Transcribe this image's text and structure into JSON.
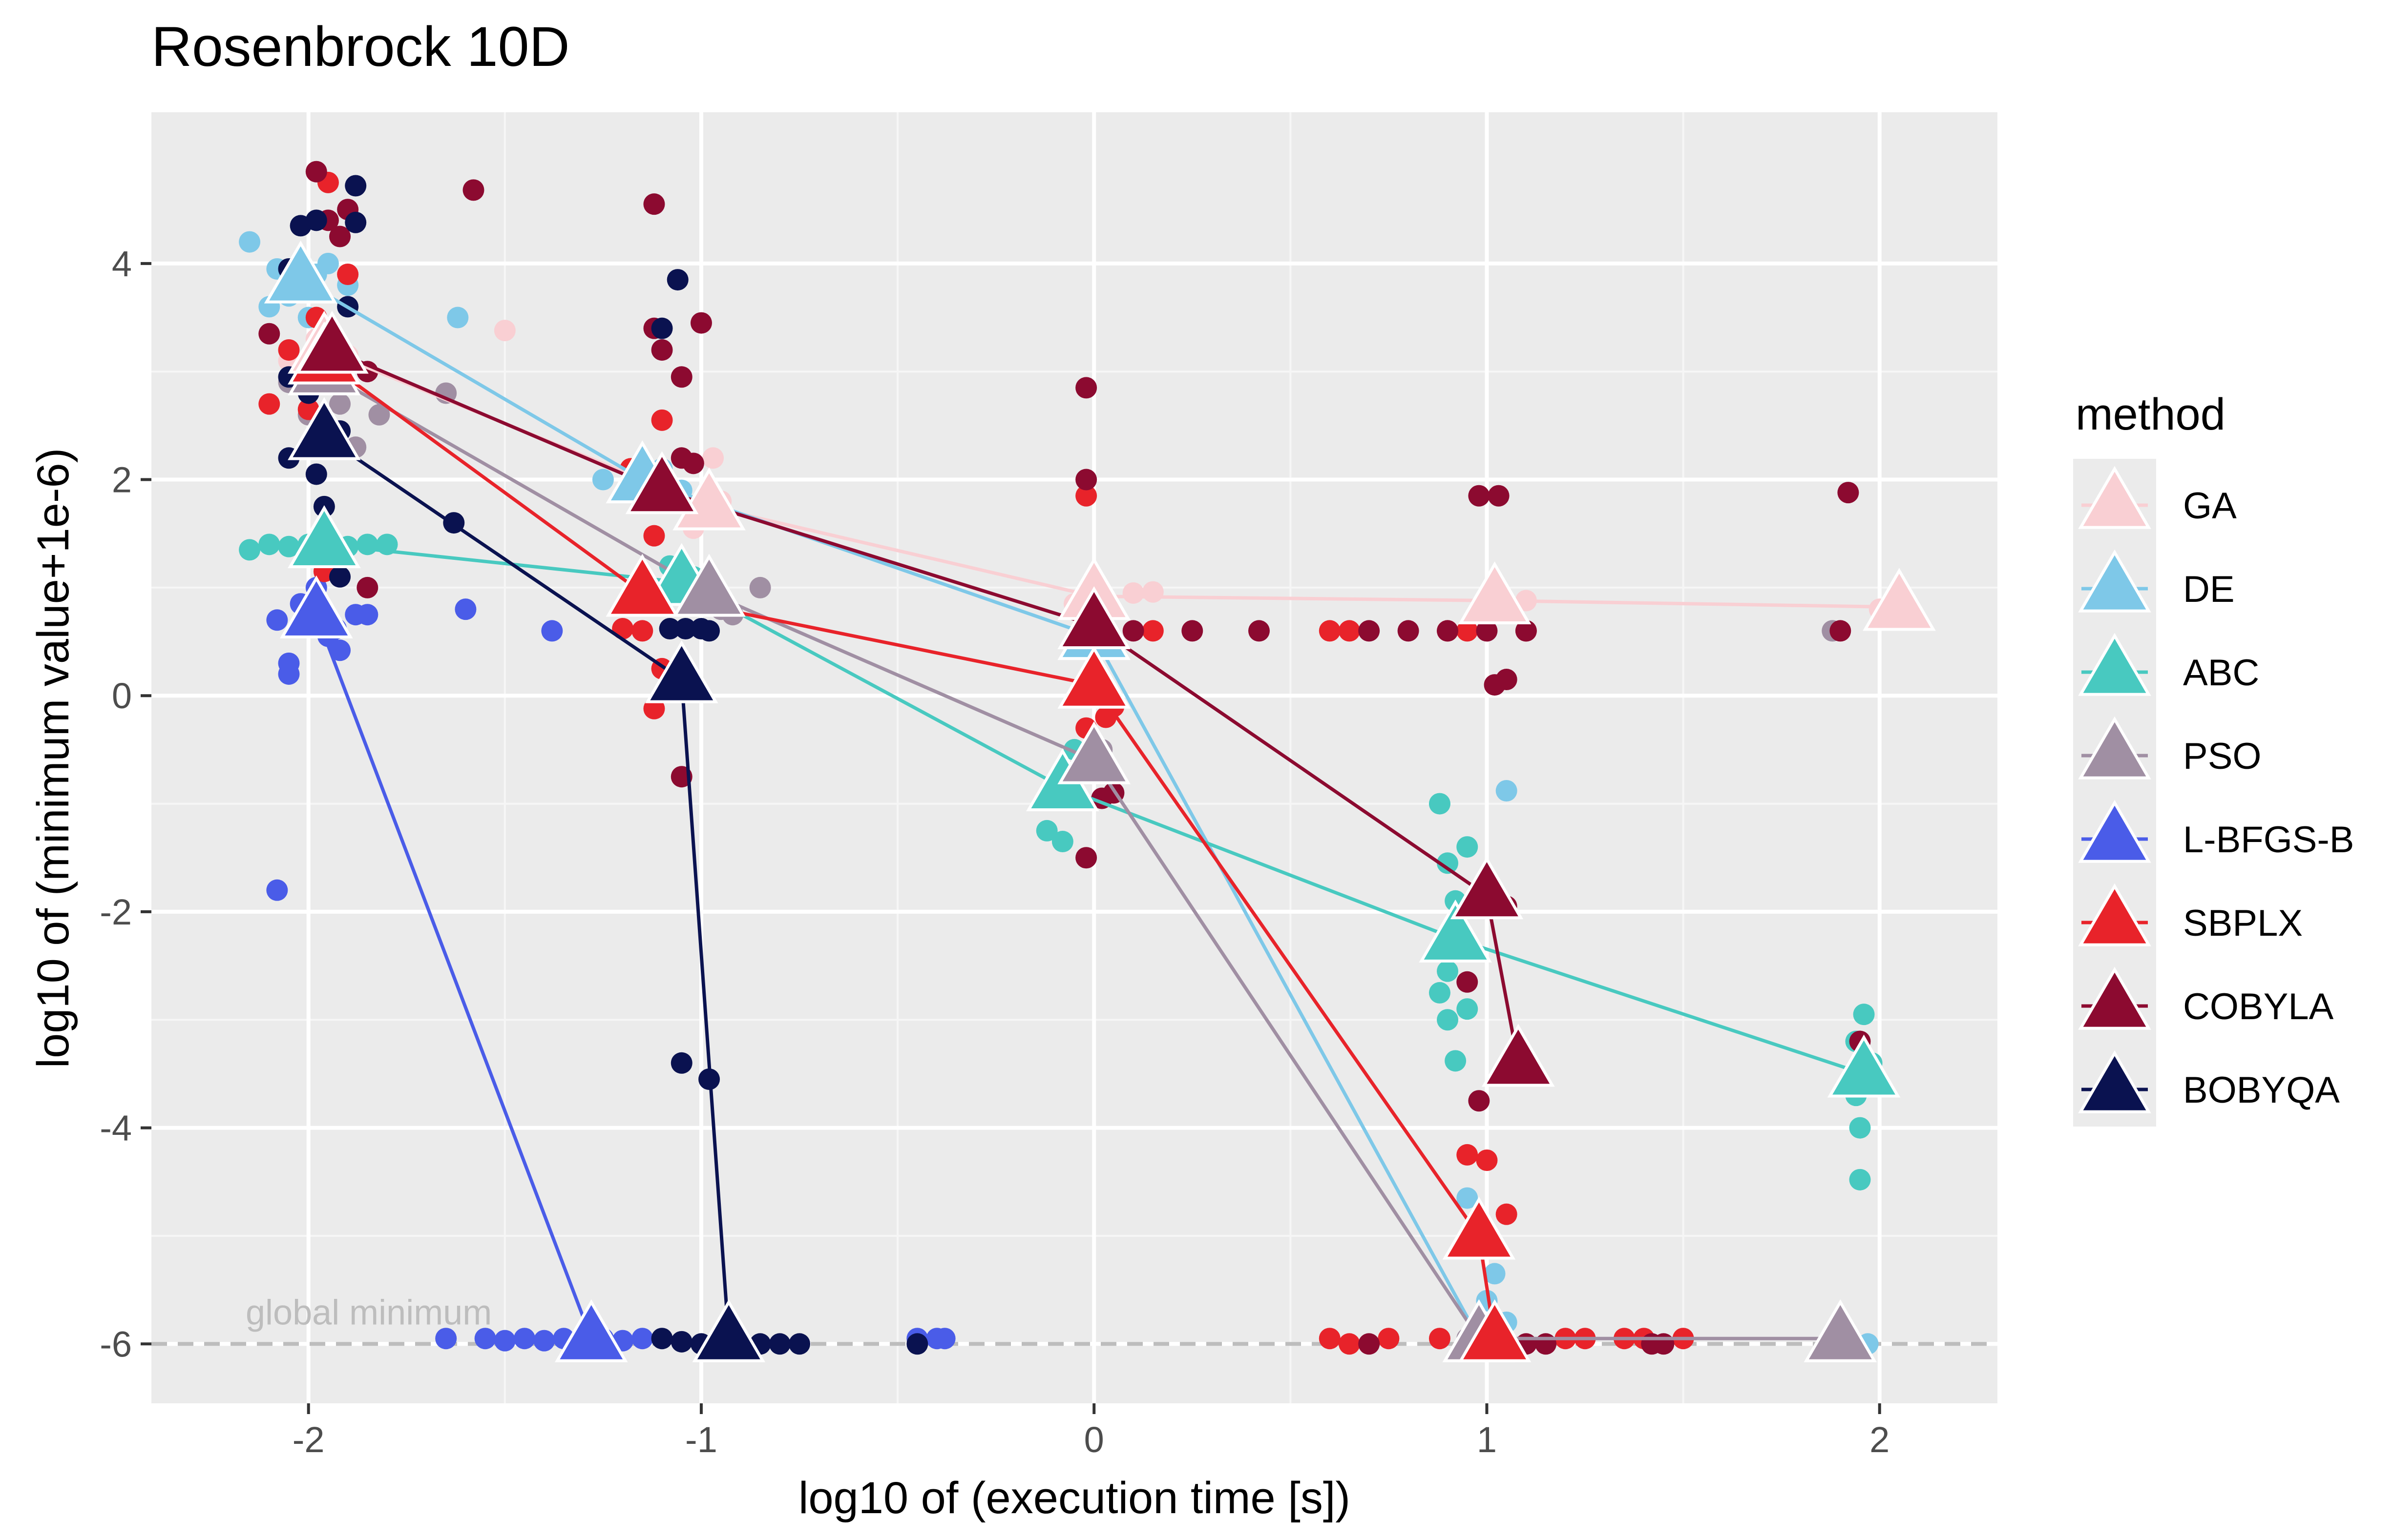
{
  "chart_data": {
    "type": "scatter",
    "title": "Rosenbrock 10D",
    "xlabel": "log10 of (execution time [s])",
    "ylabel": "log10 of (minimum value+1e-6)",
    "xlim": [
      -2.4,
      2.3
    ],
    "ylim": [
      -6.55,
      5.4
    ],
    "x_ticks": [
      -2,
      -1,
      0,
      1,
      2
    ],
    "x_tick_labels": [
      "-2",
      "-1",
      "0",
      "1",
      "2"
    ],
    "y_ticks": [
      -6,
      -4,
      -2,
      0,
      2,
      4
    ],
    "y_tick_labels": [
      "-6",
      "-4",
      "-2",
      "0",
      "2",
      "4"
    ],
    "grid": true,
    "legend_title": "method",
    "legend_position": "right",
    "reference_line": {
      "y": -6,
      "label": "global minimum",
      "color": "#bdbdbd",
      "style": "dashed"
    },
    "series": [
      {
        "name": "GA",
        "color": "#f9cfd3",
        "means": [
          [
            -1.96,
            3.2
          ],
          [
            -0.98,
            1.75
          ],
          [
            0.0,
            0.92
          ],
          [
            1.02,
            0.88
          ],
          [
            2.05,
            0.82
          ]
        ],
        "points": [
          [
            -2.05,
            3.1
          ],
          [
            -1.98,
            3.3
          ],
          [
            -1.9,
            3.15
          ],
          [
            -1.95,
            2.9
          ],
          [
            -1.5,
            3.38
          ],
          [
            -1.0,
            1.7
          ],
          [
            -0.97,
            2.2
          ],
          [
            -1.02,
            1.55
          ],
          [
            -0.95,
            1.8
          ],
          [
            0.02,
            0.95
          ],
          [
            0.1,
            0.95
          ],
          [
            0.15,
            0.96
          ],
          [
            -0.05,
            0.85
          ],
          [
            1.0,
            0.9
          ],
          [
            1.1,
            0.88
          ],
          [
            2.0,
            0.8
          ]
        ]
      },
      {
        "name": "DE",
        "color": "#7ec8e8",
        "means": [
          [
            -2.02,
            3.85
          ],
          [
            -1.15,
            2.0
          ],
          [
            0.0,
            0.55
          ],
          [
            0.98,
            -5.95
          ]
        ],
        "points": [
          [
            -2.15,
            4.2
          ],
          [
            -2.08,
            3.95
          ],
          [
            -2.05,
            3.7
          ],
          [
            -2.0,
            3.5
          ],
          [
            -1.95,
            4.0
          ],
          [
            -1.9,
            3.8
          ],
          [
            -2.1,
            3.6
          ],
          [
            -1.98,
            3.9
          ],
          [
            -1.62,
            3.5
          ],
          [
            -1.25,
            2.0
          ],
          [
            -1.15,
            1.8
          ],
          [
            -1.1,
            2.1
          ],
          [
            -1.05,
            1.9
          ],
          [
            -0.02,
            0.5
          ],
          [
            0.95,
            -4.65
          ],
          [
            1.02,
            -5.35
          ],
          [
            1.05,
            -0.88
          ],
          [
            1.0,
            -5.6
          ],
          [
            1.05,
            -5.8
          ],
          [
            1.97,
            -6.0
          ]
        ]
      },
      {
        "name": "ABC",
        "color": "#48c9c0",
        "means": [
          [
            -1.96,
            1.4
          ],
          [
            -1.05,
            1.05
          ],
          [
            -0.08,
            -0.85
          ],
          [
            0.92,
            -2.25
          ],
          [
            1.96,
            -3.5
          ]
        ],
        "points": [
          [
            -2.15,
            1.35
          ],
          [
            -2.1,
            1.4
          ],
          [
            -2.05,
            1.38
          ],
          [
            -2.0,
            1.4
          ],
          [
            -1.9,
            1.38
          ],
          [
            -1.85,
            1.4
          ],
          [
            -1.8,
            1.4
          ],
          [
            -1.08,
            1.2
          ],
          [
            -1.02,
            1.1
          ],
          [
            -1.0,
            0.95
          ],
          [
            -0.12,
            -1.25
          ],
          [
            -0.1,
            -0.95
          ],
          [
            -0.08,
            -1.35
          ],
          [
            -0.05,
            -0.5
          ],
          [
            0.88,
            -1.0
          ],
          [
            0.9,
            -1.55
          ],
          [
            0.92,
            -1.9
          ],
          [
            0.95,
            -1.4
          ],
          [
            0.88,
            -2.75
          ],
          [
            0.9,
            -3.0
          ],
          [
            0.92,
            -3.38
          ],
          [
            0.95,
            -2.9
          ],
          [
            0.9,
            -2.55
          ],
          [
            1.96,
            -2.95
          ],
          [
            1.94,
            -3.2
          ],
          [
            1.98,
            -3.4
          ],
          [
            1.94,
            -3.7
          ],
          [
            1.95,
            -4.0
          ],
          [
            1.95,
            -4.48
          ]
        ]
      },
      {
        "name": "PSO",
        "color": "#a08fa3",
        "means": [
          [
            -1.96,
            3.0
          ],
          [
            -0.98,
            0.95
          ],
          [
            0.0,
            -0.6
          ],
          [
            0.98,
            -5.95
          ],
          [
            1.9,
            -5.95
          ]
        ],
        "points": [
          [
            -2.05,
            2.9
          ],
          [
            -2.0,
            2.6
          ],
          [
            -1.92,
            2.7
          ],
          [
            -1.88,
            2.3
          ],
          [
            -1.82,
            2.6
          ],
          [
            -1.65,
            2.8
          ],
          [
            -1.0,
            0.9
          ],
          [
            -0.92,
            0.75
          ],
          [
            -0.85,
            1.0
          ],
          [
            -0.95,
            0.8
          ],
          [
            -0.05,
            -0.7
          ],
          [
            0.02,
            -0.5
          ],
          [
            0.95,
            -5.95
          ],
          [
            1.02,
            -6.0
          ],
          [
            1.88,
            0.6
          ],
          [
            1.9,
            -6.0
          ]
        ]
      },
      {
        "name": "L-BFGS-B",
        "color": "#4a5ce8",
        "means": [
          [
            -1.98,
            0.75
          ],
          [
            -1.28,
            -5.95
          ]
        ],
        "points": [
          [
            -2.08,
            0.7
          ],
          [
            -2.05,
            0.3
          ],
          [
            -2.05,
            0.2
          ],
          [
            -2.02,
            0.85
          ],
          [
            -1.98,
            1.0
          ],
          [
            -1.95,
            0.55
          ],
          [
            -1.93,
            0.62
          ],
          [
            -1.92,
            0.42
          ],
          [
            -1.88,
            0.75
          ],
          [
            -1.85,
            0.75
          ],
          [
            -2.08,
            -1.8
          ],
          [
            -1.6,
            0.8
          ],
          [
            -1.38,
            0.6
          ],
          [
            -1.65,
            -5.95
          ],
          [
            -1.55,
            -5.95
          ],
          [
            -1.5,
            -5.97
          ],
          [
            -1.45,
            -5.95
          ],
          [
            -1.4,
            -5.97
          ],
          [
            -1.35,
            -5.95
          ],
          [
            -1.3,
            -5.97
          ],
          [
            -1.25,
            -5.95
          ],
          [
            -1.2,
            -5.97
          ],
          [
            -1.15,
            -5.95
          ],
          [
            -0.45,
            -5.95
          ],
          [
            -0.4,
            -5.95
          ],
          [
            -0.38,
            -5.95
          ],
          [
            1.9,
            -5.95
          ]
        ]
      },
      {
        "name": "SBPLX",
        "color": "#e8232a",
        "means": [
          [
            -1.96,
            3.1
          ],
          [
            -1.15,
            0.95
          ],
          [
            0.0,
            0.1
          ],
          [
            0.98,
            -5.0
          ],
          [
            1.02,
            -5.95
          ]
        ],
        "points": [
          [
            -2.1,
            2.7
          ],
          [
            -2.05,
            3.2
          ],
          [
            -1.98,
            3.5
          ],
          [
            -1.95,
            4.75
          ],
          [
            -1.9,
            3.9
          ],
          [
            -2.0,
            2.65
          ],
          [
            -1.96,
            1.15
          ],
          [
            -1.2,
            0.62
          ],
          [
            -1.15,
            0.6
          ],
          [
            -1.12,
            1.48
          ],
          [
            -1.1,
            2.55
          ],
          [
            -1.12,
            -0.12
          ],
          [
            -1.1,
            0.25
          ],
          [
            -1.18,
            2.1
          ],
          [
            -0.02,
            1.85
          ],
          [
            -0.02,
            -0.3
          ],
          [
            0.0,
            -0.5
          ],
          [
            0.03,
            -0.2
          ],
          [
            0.05,
            -0.1
          ],
          [
            0.15,
            0.6
          ],
          [
            0.6,
            0.6
          ],
          [
            0.65,
            0.6
          ],
          [
            0.9,
            0.6
          ],
          [
            0.95,
            0.6
          ],
          [
            1.1,
            0.6
          ],
          [
            0.95,
            -4.25
          ],
          [
            1.0,
            -4.3
          ],
          [
            1.05,
            -4.8
          ],
          [
            0.98,
            -5.95
          ],
          [
            0.6,
            -5.95
          ],
          [
            0.65,
            -6.0
          ],
          [
            0.75,
            -5.95
          ],
          [
            1.5,
            -5.95
          ],
          [
            1.35,
            -5.95
          ],
          [
            1.4,
            -5.95
          ],
          [
            1.25,
            -5.95
          ],
          [
            1.2,
            -5.95
          ],
          [
            0.88,
            -5.95
          ]
        ]
      },
      {
        "name": "COBYLA",
        "color": "#8c0a30",
        "means": [
          [
            -1.94,
            3.2
          ],
          [
            -1.1,
            1.9
          ],
          [
            0.0,
            0.65
          ],
          [
            1.0,
            -1.85
          ],
          [
            1.08,
            -3.4
          ]
        ],
        "points": [
          [
            -2.1,
            3.35
          ],
          [
            -1.98,
            4.85
          ],
          [
            -1.95,
            4.4
          ],
          [
            -1.92,
            4.25
          ],
          [
            -1.9,
            4.5
          ],
          [
            -1.85,
            3.0
          ],
          [
            -1.85,
            1.0
          ],
          [
            -1.58,
            4.68
          ],
          [
            -1.12,
            4.55
          ],
          [
            -1.12,
            3.4
          ],
          [
            -1.1,
            3.2
          ],
          [
            -1.05,
            2.95
          ],
          [
            -1.0,
            3.45
          ],
          [
            -1.05,
            2.2
          ],
          [
            -1.02,
            2.15
          ],
          [
            -1.05,
            -0.75
          ],
          [
            -0.02,
            2.85
          ],
          [
            -0.02,
            2.0
          ],
          [
            0.02,
            -0.95
          ],
          [
            0.05,
            -0.9
          ],
          [
            -0.02,
            -1.5
          ],
          [
            0.1,
            0.6
          ],
          [
            0.25,
            0.6
          ],
          [
            0.42,
            0.6
          ],
          [
            0.7,
            0.6
          ],
          [
            0.8,
            0.6
          ],
          [
            0.9,
            0.6
          ],
          [
            1.0,
            0.6
          ],
          [
            1.1,
            0.6
          ],
          [
            0.98,
            1.85
          ],
          [
            1.03,
            1.85
          ],
          [
            1.02,
            0.1
          ],
          [
            1.05,
            0.15
          ],
          [
            0.98,
            -3.75
          ],
          [
            0.95,
            -2.65
          ],
          [
            1.05,
            -1.95
          ],
          [
            1.95,
            -3.2
          ],
          [
            1.92,
            1.88
          ],
          [
            1.9,
            0.6
          ],
          [
            0.7,
            -6.0
          ],
          [
            1.15,
            -6.0
          ],
          [
            1.42,
            -6.0
          ],
          [
            1.45,
            -6.0
          ],
          [
            1.05,
            -6.0
          ],
          [
            1.1,
            -6.0
          ]
        ]
      },
      {
        "name": "BOBYQA",
        "color": "#0a1250",
        "means": [
          [
            -1.96,
            2.4
          ],
          [
            -1.05,
            0.15
          ],
          [
            -0.93,
            -5.95
          ]
        ],
        "points": [
          [
            -2.02,
            4.35
          ],
          [
            -1.98,
            4.4
          ],
          [
            -2.05,
            3.95
          ],
          [
            -1.9,
            3.6
          ],
          [
            -1.88,
            4.72
          ],
          [
            -1.88,
            4.38
          ],
          [
            -2.05,
            2.95
          ],
          [
            -2.0,
            2.8
          ],
          [
            -1.98,
            2.05
          ],
          [
            -1.96,
            1.75
          ],
          [
            -1.92,
            1.1
          ],
          [
            -2.05,
            2.2
          ],
          [
            -1.92,
            2.45
          ],
          [
            -1.63,
            1.6
          ],
          [
            -1.06,
            3.85
          ],
          [
            -1.1,
            3.4
          ],
          [
            -1.08,
            0.62
          ],
          [
            -1.04,
            0.62
          ],
          [
            -1.0,
            0.62
          ],
          [
            -0.98,
            0.6
          ],
          [
            -1.05,
            -3.4
          ],
          [
            -0.98,
            -3.55
          ],
          [
            -1.1,
            -5.95
          ],
          [
            -1.05,
            -5.98
          ],
          [
            -1.0,
            -6.0
          ],
          [
            -0.95,
            -6.0
          ],
          [
            -0.9,
            -6.0
          ],
          [
            -0.85,
            -6.0
          ],
          [
            -0.8,
            -6.0
          ],
          [
            -0.75,
            -6.0
          ],
          [
            -0.45,
            -6.0
          ]
        ]
      }
    ]
  }
}
